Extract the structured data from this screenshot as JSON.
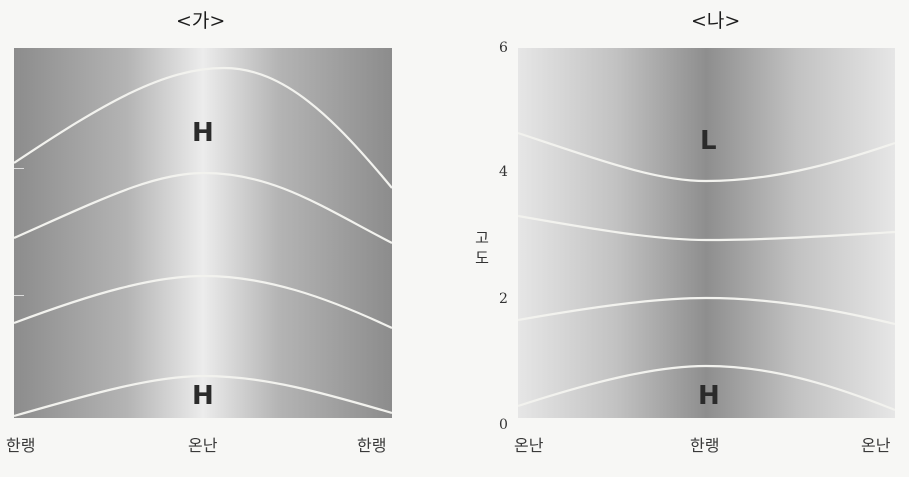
{
  "panels": {
    "ga": {
      "title": "<가>",
      "top_label": "H",
      "bottom_label": "H",
      "xlabels": [
        "한랭",
        "온난",
        "한랭"
      ]
    },
    "na": {
      "title": "<나>",
      "top_label": "L",
      "bottom_label": "H",
      "xlabels": [
        "온난",
        "한랭",
        "온난"
      ],
      "ylabel": "고도",
      "yticks": [
        "0",
        "2",
        "4",
        "6"
      ]
    }
  },
  "colors": {
    "isobar": "#f2f2ee"
  }
}
